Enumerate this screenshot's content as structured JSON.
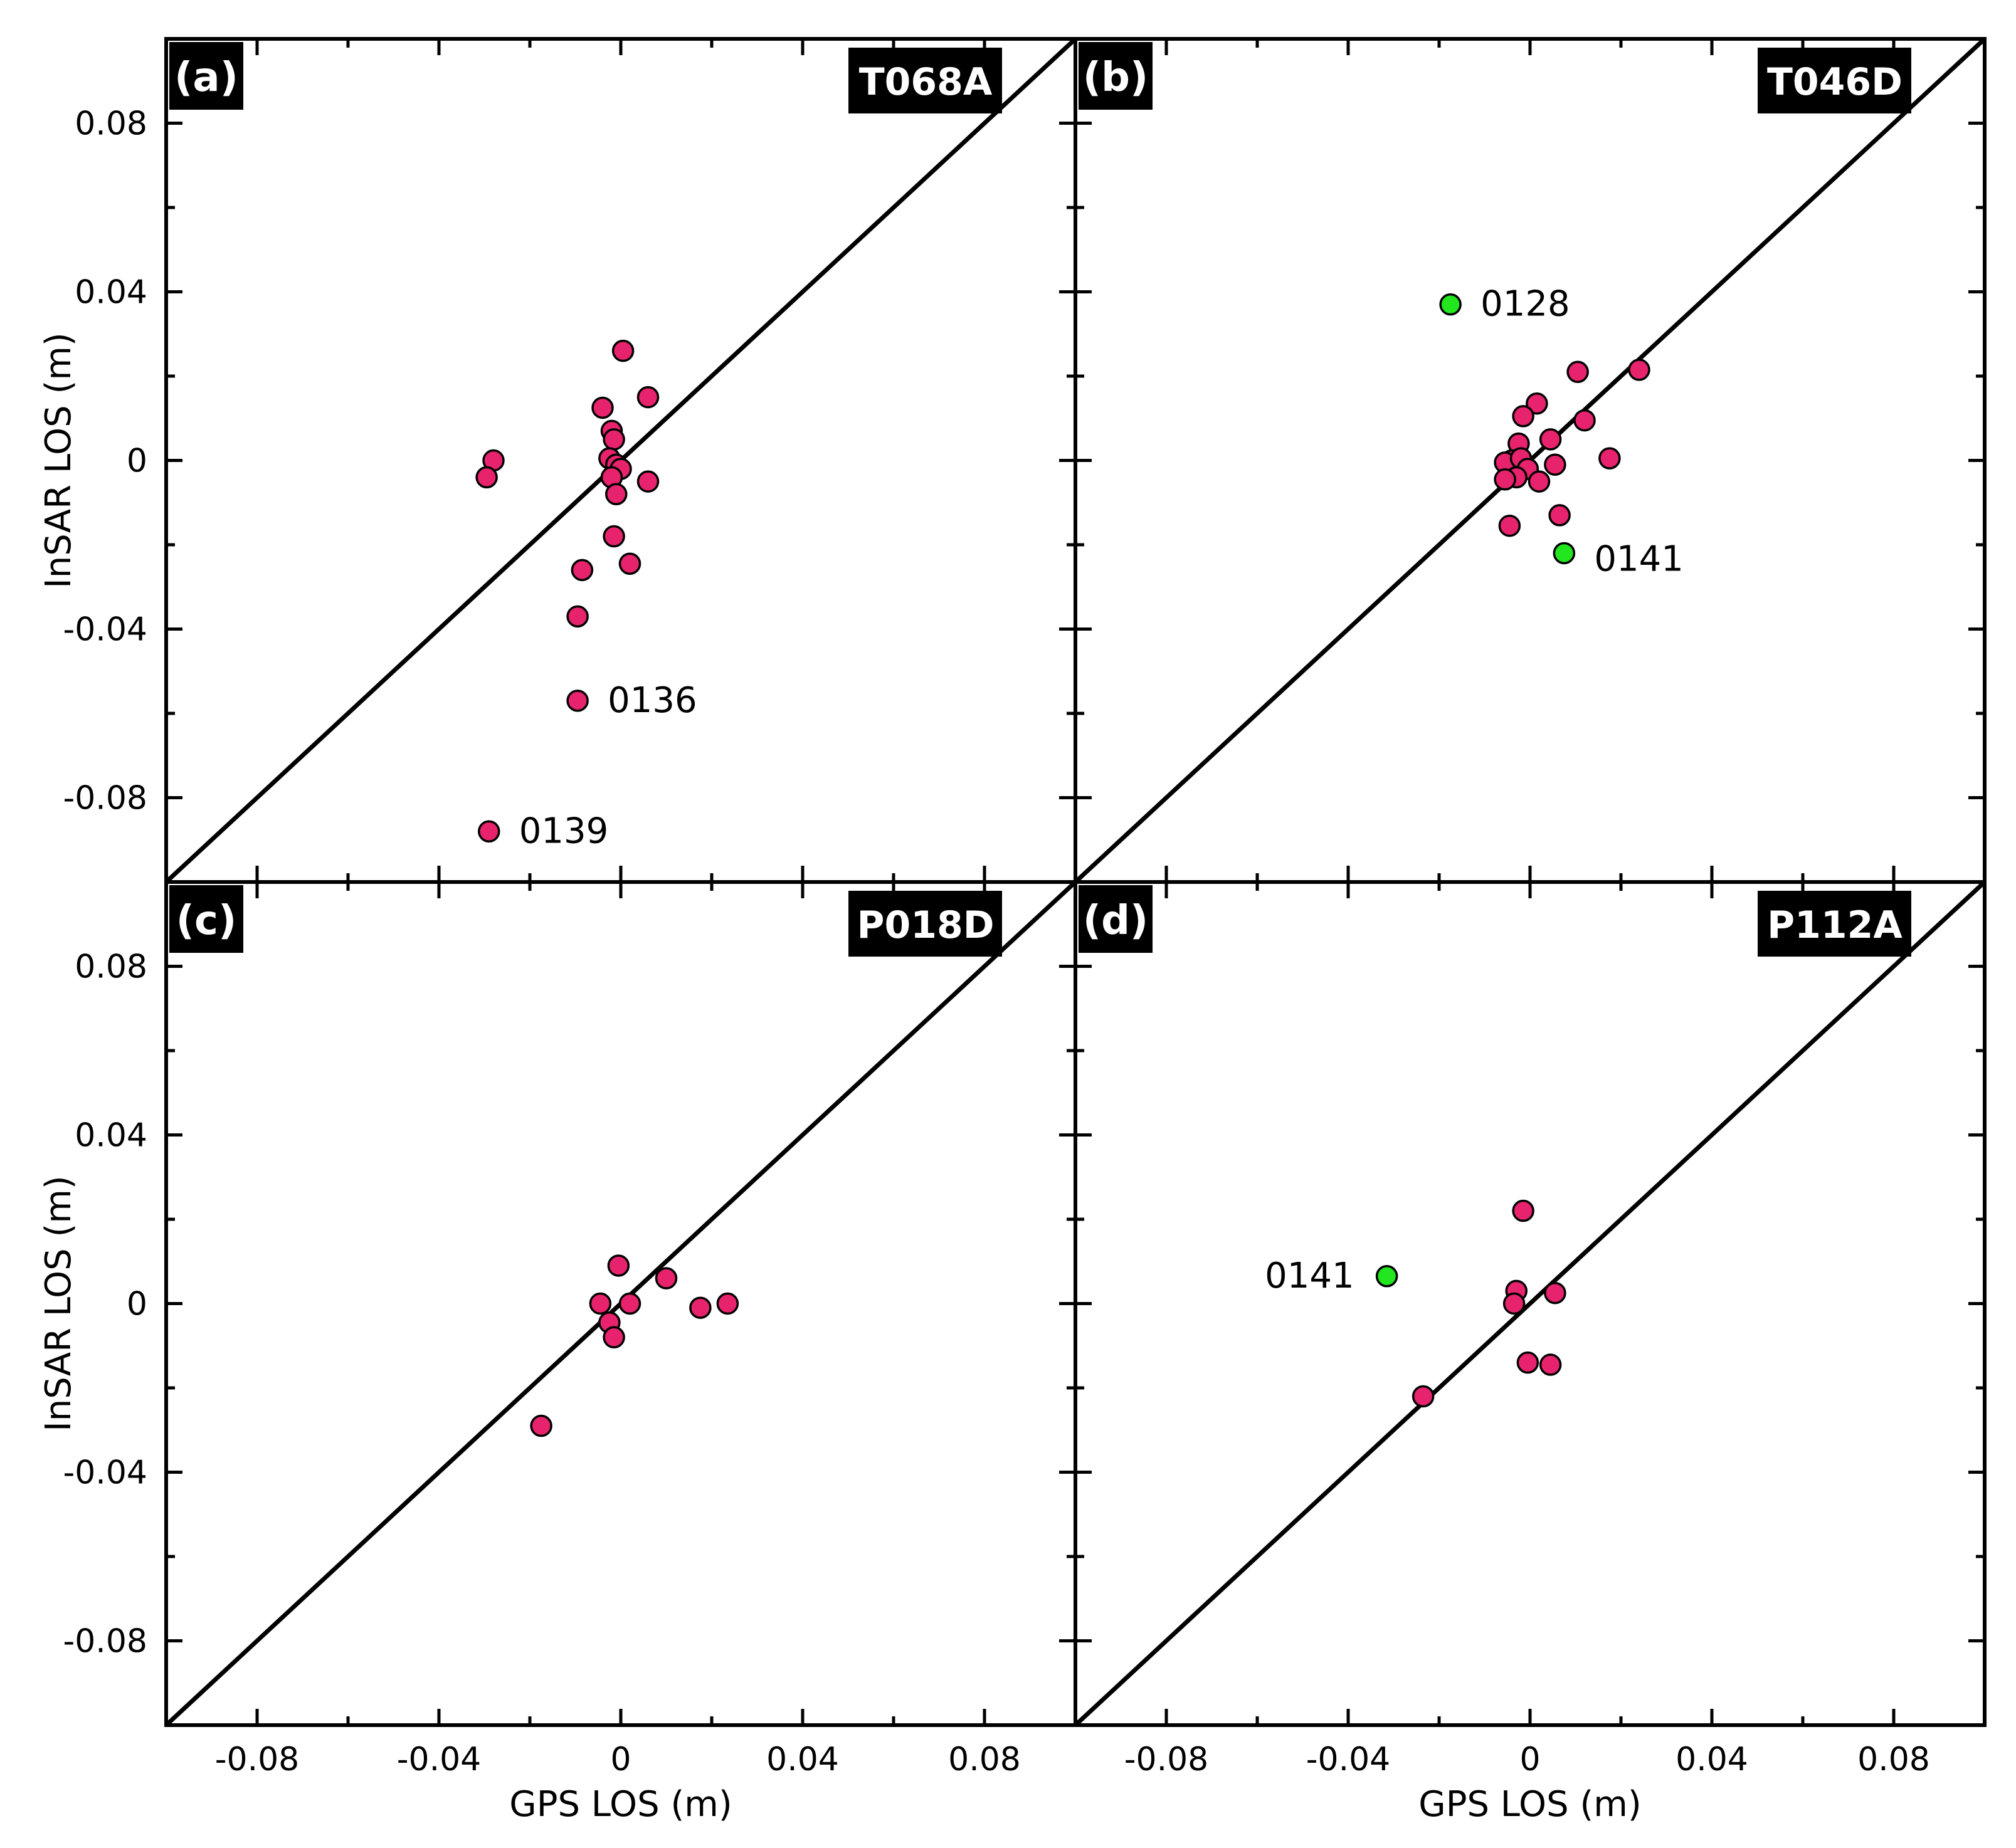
{
  "figure": {
    "x_axis_label": "GPS LOS (m)",
    "y_axis_label": "InSAR LOS (m)"
  },
  "colors": {
    "primary_marker": "#e8236e",
    "highlight_marker": "#22e61e",
    "marker_edge": "#000000",
    "panel_tag_bg": "#000000",
    "panel_tag_text": "#ffffff"
  },
  "chart_data": [
    {
      "type": "scatter",
      "panel": "(a)",
      "track": "T068A",
      "xlim": [
        -0.1,
        0.1
      ],
      "ylim": [
        -0.1,
        0.1
      ],
      "xticks": [
        -0.08,
        -0.04,
        0,
        0.04,
        0.08
      ],
      "xtick_labels": [
        "-0.08",
        "-0.04",
        "0",
        "0.04",
        "0.08"
      ],
      "yticks": [
        0.08,
        0.04,
        0,
        -0.04,
        -0.08
      ],
      "ytick_labels": [
        "0.08",
        "0.04",
        "0",
        "-0.04",
        "-0.08"
      ],
      "reference_line": "1:1",
      "points": [
        {
          "x": -0.028,
          "y": 0.0
        },
        {
          "x": -0.0295,
          "y": -0.004
        },
        {
          "x": 0.0005,
          "y": 0.026
        },
        {
          "x": 0.006,
          "y": 0.015
        },
        {
          "x": -0.004,
          "y": 0.0125
        },
        {
          "x": -0.002,
          "y": 0.007
        },
        {
          "x": -0.0015,
          "y": 0.005
        },
        {
          "x": -0.0025,
          "y": 0.0005
        },
        {
          "x": -0.001,
          "y": -0.001
        },
        {
          "x": 0.0,
          "y": -0.002
        },
        {
          "x": -0.002,
          "y": -0.004
        },
        {
          "x": -0.001,
          "y": -0.008
        },
        {
          "x": 0.006,
          "y": -0.005
        },
        {
          "x": -0.0015,
          "y": -0.018
        },
        {
          "x": -0.0085,
          "y": -0.026
        },
        {
          "x": 0.002,
          "y": -0.0245
        },
        {
          "x": -0.0095,
          "y": -0.037
        },
        {
          "x": -0.0095,
          "y": -0.057,
          "label": "0136"
        },
        {
          "x": -0.029,
          "y": -0.088,
          "label": "0139"
        }
      ]
    },
    {
      "type": "scatter",
      "panel": "(b)",
      "track": "T046D",
      "xlim": [
        -0.1,
        0.1
      ],
      "ylim": [
        -0.1,
        0.1
      ],
      "xticks": [
        -0.08,
        -0.04,
        0,
        0.04,
        0.08
      ],
      "xtick_labels": [
        "-0.08",
        "-0.04",
        "0",
        "0.04",
        "0.08"
      ],
      "yticks": [
        0.08,
        0.04,
        0,
        -0.04,
        -0.08
      ],
      "ytick_labels": [
        "0.08",
        "0.04",
        "0",
        "-0.04",
        "-0.08"
      ],
      "reference_line": "1:1",
      "points": [
        {
          "x": -0.0175,
          "y": 0.037,
          "label": "0128",
          "highlight": true
        },
        {
          "x": 0.0075,
          "y": -0.022,
          "label": "0141",
          "highlight": true
        },
        {
          "x": 0.024,
          "y": 0.0215
        },
        {
          "x": 0.0105,
          "y": 0.021
        },
        {
          "x": 0.0015,
          "y": 0.0135
        },
        {
          "x": -0.0015,
          "y": 0.0105
        },
        {
          "x": 0.012,
          "y": 0.0095
        },
        {
          "x": 0.0045,
          "y": 0.005
        },
        {
          "x": -0.0025,
          "y": 0.004
        },
        {
          "x": 0.0175,
          "y": 0.0005
        },
        {
          "x": 0.0055,
          "y": -0.001
        },
        {
          "x": -0.004,
          "y": 0.0
        },
        {
          "x": -0.0055,
          "y": -0.0005
        },
        {
          "x": -0.002,
          "y": 0.0005
        },
        {
          "x": -0.0005,
          "y": -0.002
        },
        {
          "x": -0.003,
          "y": -0.004
        },
        {
          "x": -0.0055,
          "y": -0.0045
        },
        {
          "x": 0.002,
          "y": -0.005
        },
        {
          "x": -0.0045,
          "y": -0.0155
        },
        {
          "x": 0.0065,
          "y": -0.013
        }
      ]
    },
    {
      "type": "scatter",
      "panel": "(c)",
      "track": "P018D",
      "xlim": [
        -0.1,
        0.1
      ],
      "ylim": [
        -0.1,
        0.1
      ],
      "xticks": [
        -0.08,
        -0.04,
        0,
        0.04,
        0.08
      ],
      "xtick_labels": [
        "-0.08",
        "-0.04",
        "0",
        "0.04",
        "0.08"
      ],
      "yticks": [
        0.08,
        0.04,
        0,
        -0.04,
        -0.08
      ],
      "ytick_labels": [
        "0.08",
        "0.04",
        "0",
        "-0.04",
        "-0.08"
      ],
      "reference_line": "1:1",
      "points": [
        {
          "x": -0.0005,
          "y": 0.009
        },
        {
          "x": 0.01,
          "y": 0.006
        },
        {
          "x": -0.0045,
          "y": 0.0
        },
        {
          "x": 0.002,
          "y": 0.0
        },
        {
          "x": 0.0175,
          "y": -0.001
        },
        {
          "x": 0.0235,
          "y": 0.0
        },
        {
          "x": -0.0025,
          "y": -0.0045
        },
        {
          "x": -0.0015,
          "y": -0.008
        },
        {
          "x": -0.0175,
          "y": -0.029
        }
      ]
    },
    {
      "type": "scatter",
      "panel": "(d)",
      "track": "P112A",
      "xlim": [
        -0.1,
        0.1
      ],
      "ylim": [
        -0.1,
        0.1
      ],
      "xticks": [
        -0.08,
        -0.04,
        0,
        0.04,
        0.08
      ],
      "xtick_labels": [
        "-0.08",
        "-0.04",
        "0",
        "0.04",
        "0.08"
      ],
      "yticks": [
        0.08,
        0.04,
        0,
        -0.04,
        -0.08
      ],
      "ytick_labels": [
        "0.08",
        "0.04",
        "0",
        "-0.04",
        "-0.08"
      ],
      "reference_line": "1:1",
      "points": [
        {
          "x": -0.0315,
          "y": 0.0065,
          "label": "0141",
          "highlight": true
        },
        {
          "x": -0.0015,
          "y": 0.022
        },
        {
          "x": -0.003,
          "y": 0.003
        },
        {
          "x": -0.0035,
          "y": 0.0
        },
        {
          "x": 0.0055,
          "y": 0.0025
        },
        {
          "x": -0.0005,
          "y": -0.014
        },
        {
          "x": 0.0045,
          "y": -0.0145
        },
        {
          "x": -0.0235,
          "y": -0.022
        }
      ]
    }
  ]
}
